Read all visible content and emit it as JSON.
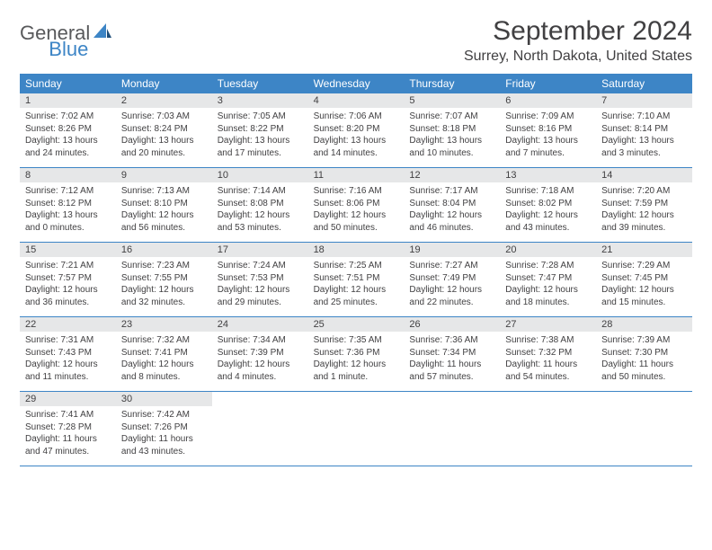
{
  "brand": {
    "main": "General",
    "sub": "Blue"
  },
  "title": "September 2024",
  "location": "Surrey, North Dakota, United States",
  "colors": {
    "header_bg": "#3d85c6",
    "header_fg": "#ffffff",
    "daynum_bg": "#e6e7e8",
    "text": "#414042",
    "rule": "#3d85c6"
  },
  "weekdays": [
    "Sunday",
    "Monday",
    "Tuesday",
    "Wednesday",
    "Thursday",
    "Friday",
    "Saturday"
  ],
  "weeks": [
    [
      {
        "n": "1",
        "sunrise": "Sunrise: 7:02 AM",
        "sunset": "Sunset: 8:26 PM",
        "d1": "Daylight: 13 hours",
        "d2": "and 24 minutes."
      },
      {
        "n": "2",
        "sunrise": "Sunrise: 7:03 AM",
        "sunset": "Sunset: 8:24 PM",
        "d1": "Daylight: 13 hours",
        "d2": "and 20 minutes."
      },
      {
        "n": "3",
        "sunrise": "Sunrise: 7:05 AM",
        "sunset": "Sunset: 8:22 PM",
        "d1": "Daylight: 13 hours",
        "d2": "and 17 minutes."
      },
      {
        "n": "4",
        "sunrise": "Sunrise: 7:06 AM",
        "sunset": "Sunset: 8:20 PM",
        "d1": "Daylight: 13 hours",
        "d2": "and 14 minutes."
      },
      {
        "n": "5",
        "sunrise": "Sunrise: 7:07 AM",
        "sunset": "Sunset: 8:18 PM",
        "d1": "Daylight: 13 hours",
        "d2": "and 10 minutes."
      },
      {
        "n": "6",
        "sunrise": "Sunrise: 7:09 AM",
        "sunset": "Sunset: 8:16 PM",
        "d1": "Daylight: 13 hours",
        "d2": "and 7 minutes."
      },
      {
        "n": "7",
        "sunrise": "Sunrise: 7:10 AM",
        "sunset": "Sunset: 8:14 PM",
        "d1": "Daylight: 13 hours",
        "d2": "and 3 minutes."
      }
    ],
    [
      {
        "n": "8",
        "sunrise": "Sunrise: 7:12 AM",
        "sunset": "Sunset: 8:12 PM",
        "d1": "Daylight: 13 hours",
        "d2": "and 0 minutes."
      },
      {
        "n": "9",
        "sunrise": "Sunrise: 7:13 AM",
        "sunset": "Sunset: 8:10 PM",
        "d1": "Daylight: 12 hours",
        "d2": "and 56 minutes."
      },
      {
        "n": "10",
        "sunrise": "Sunrise: 7:14 AM",
        "sunset": "Sunset: 8:08 PM",
        "d1": "Daylight: 12 hours",
        "d2": "and 53 minutes."
      },
      {
        "n": "11",
        "sunrise": "Sunrise: 7:16 AM",
        "sunset": "Sunset: 8:06 PM",
        "d1": "Daylight: 12 hours",
        "d2": "and 50 minutes."
      },
      {
        "n": "12",
        "sunrise": "Sunrise: 7:17 AM",
        "sunset": "Sunset: 8:04 PM",
        "d1": "Daylight: 12 hours",
        "d2": "and 46 minutes."
      },
      {
        "n": "13",
        "sunrise": "Sunrise: 7:18 AM",
        "sunset": "Sunset: 8:02 PM",
        "d1": "Daylight: 12 hours",
        "d2": "and 43 minutes."
      },
      {
        "n": "14",
        "sunrise": "Sunrise: 7:20 AM",
        "sunset": "Sunset: 7:59 PM",
        "d1": "Daylight: 12 hours",
        "d2": "and 39 minutes."
      }
    ],
    [
      {
        "n": "15",
        "sunrise": "Sunrise: 7:21 AM",
        "sunset": "Sunset: 7:57 PM",
        "d1": "Daylight: 12 hours",
        "d2": "and 36 minutes."
      },
      {
        "n": "16",
        "sunrise": "Sunrise: 7:23 AM",
        "sunset": "Sunset: 7:55 PM",
        "d1": "Daylight: 12 hours",
        "d2": "and 32 minutes."
      },
      {
        "n": "17",
        "sunrise": "Sunrise: 7:24 AM",
        "sunset": "Sunset: 7:53 PM",
        "d1": "Daylight: 12 hours",
        "d2": "and 29 minutes."
      },
      {
        "n": "18",
        "sunrise": "Sunrise: 7:25 AM",
        "sunset": "Sunset: 7:51 PM",
        "d1": "Daylight: 12 hours",
        "d2": "and 25 minutes."
      },
      {
        "n": "19",
        "sunrise": "Sunrise: 7:27 AM",
        "sunset": "Sunset: 7:49 PM",
        "d1": "Daylight: 12 hours",
        "d2": "and 22 minutes."
      },
      {
        "n": "20",
        "sunrise": "Sunrise: 7:28 AM",
        "sunset": "Sunset: 7:47 PM",
        "d1": "Daylight: 12 hours",
        "d2": "and 18 minutes."
      },
      {
        "n": "21",
        "sunrise": "Sunrise: 7:29 AM",
        "sunset": "Sunset: 7:45 PM",
        "d1": "Daylight: 12 hours",
        "d2": "and 15 minutes."
      }
    ],
    [
      {
        "n": "22",
        "sunrise": "Sunrise: 7:31 AM",
        "sunset": "Sunset: 7:43 PM",
        "d1": "Daylight: 12 hours",
        "d2": "and 11 minutes."
      },
      {
        "n": "23",
        "sunrise": "Sunrise: 7:32 AM",
        "sunset": "Sunset: 7:41 PM",
        "d1": "Daylight: 12 hours",
        "d2": "and 8 minutes."
      },
      {
        "n": "24",
        "sunrise": "Sunrise: 7:34 AM",
        "sunset": "Sunset: 7:39 PM",
        "d1": "Daylight: 12 hours",
        "d2": "and 4 minutes."
      },
      {
        "n": "25",
        "sunrise": "Sunrise: 7:35 AM",
        "sunset": "Sunset: 7:36 PM",
        "d1": "Daylight: 12 hours",
        "d2": "and 1 minute."
      },
      {
        "n": "26",
        "sunrise": "Sunrise: 7:36 AM",
        "sunset": "Sunset: 7:34 PM",
        "d1": "Daylight: 11 hours",
        "d2": "and 57 minutes."
      },
      {
        "n": "27",
        "sunrise": "Sunrise: 7:38 AM",
        "sunset": "Sunset: 7:32 PM",
        "d1": "Daylight: 11 hours",
        "d2": "and 54 minutes."
      },
      {
        "n": "28",
        "sunrise": "Sunrise: 7:39 AM",
        "sunset": "Sunset: 7:30 PM",
        "d1": "Daylight: 11 hours",
        "d2": "and 50 minutes."
      }
    ],
    [
      {
        "n": "29",
        "sunrise": "Sunrise: 7:41 AM",
        "sunset": "Sunset: 7:28 PM",
        "d1": "Daylight: 11 hours",
        "d2": "and 47 minutes."
      },
      {
        "n": "30",
        "sunrise": "Sunrise: 7:42 AM",
        "sunset": "Sunset: 7:26 PM",
        "d1": "Daylight: 11 hours",
        "d2": "and 43 minutes."
      },
      null,
      null,
      null,
      null,
      null
    ]
  ]
}
